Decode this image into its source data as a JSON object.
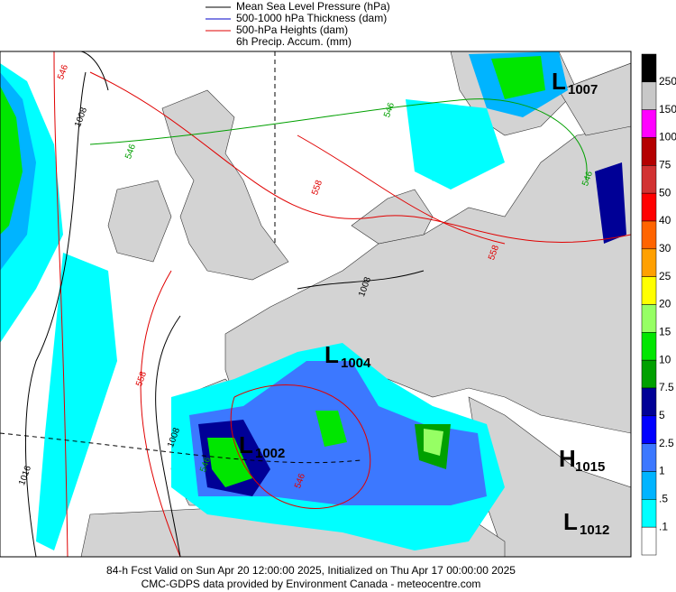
{
  "legend": {
    "items": [
      {
        "label": "Mean Sea Level Pressure (hPa)",
        "color": "#000000"
      },
      {
        "label": "500-1000 hPa Thickness (dam)",
        "color": "#0000c8"
      },
      {
        "label": "500-hPa Heights (dam)",
        "color": "#e00000"
      },
      {
        "label": "6h Precip. Accum. (mm)"
      }
    ]
  },
  "colorbar": {
    "labels": [
      "250",
      "150",
      "100",
      "75",
      "50",
      "40",
      "30",
      "25",
      "20",
      "15",
      "10",
      "7.5",
      "5",
      "2.5",
      "1",
      ".5",
      ".1"
    ],
    "colors": [
      "#000000",
      "#c8c8c8",
      "#ff00ff",
      "#b40000",
      "#d23232",
      "#ff0000",
      "#ff6400",
      "#ffa000",
      "#ffff00",
      "#96ff64",
      "#00e600",
      "#00a000",
      "#000096",
      "#0000ff",
      "#3c78ff",
      "#00b4ff",
      "#00ffff",
      "#ffffff"
    ]
  },
  "pressure_centers": [
    {
      "letter": "L",
      "value": "1007"
    },
    {
      "letter": "L",
      "value": "1004"
    },
    {
      "letter": "L",
      "value": "1002"
    },
    {
      "letter": "H",
      "value": "1015"
    },
    {
      "letter": "L",
      "value": "1012"
    }
  ],
  "contour_labels": [
    "546",
    "546",
    "546",
    "546",
    "558",
    "558",
    "558",
    "1008",
    "1008",
    "1008",
    "546",
    "546",
    "1016"
  ],
  "footer": {
    "line1": "84-h Fcst Valid on Sun Apr 20 12:00:00 2025, Initialized on Thu Apr 17 00:00:00 2025",
    "line2": "CMC-GDPS data provided by Environment Canada - meteocentre.com"
  }
}
